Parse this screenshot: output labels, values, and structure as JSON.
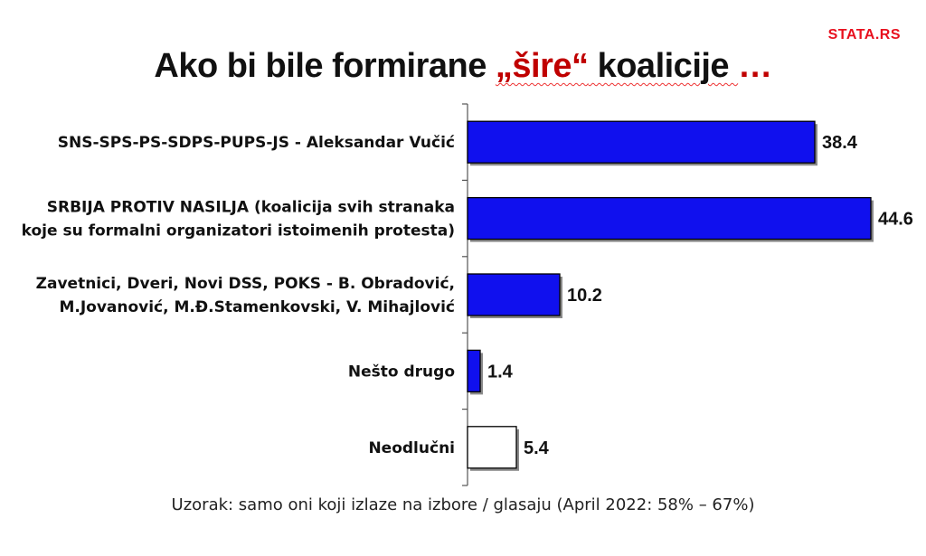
{
  "brand": "STATA.RS",
  "title": {
    "before": "Ako bi bile formirane ",
    "highlight": "„šire“",
    "after": " koalicije ",
    "ellipsis": "…"
  },
  "footnote": "Uzorak: samo oni koji izlaze na izbore / glasaju (April 2022: 58% – 67%)",
  "colors": {
    "bar": "#1010ee",
    "bar_undecided": "#ffffff",
    "accent": "#c00000",
    "brand": "#e8101e"
  },
  "chart_data": {
    "type": "bar",
    "orientation": "horizontal",
    "categories": [
      [
        "SNS-SPS-PS-SDPS-PUPS-JS - Aleksandar Vučić"
      ],
      [
        "SRBIJA PROTIV NASILJA (koalicija svih stranaka",
        "koje su formalni organizatori istoimenih protesta)"
      ],
      [
        "Zavetnici, Dveri, Novi DSS, POKS - B. Obradović,",
        "M.Jovanović, M.Đ.Stamenkovski, V. Mihajlović"
      ],
      [
        "Nešto drugo"
      ],
      [
        "Neodlučni"
      ]
    ],
    "values": [
      38.4,
      44.6,
      10.2,
      1.4,
      5.4
    ],
    "value_labels": [
      "38.4",
      "44.6",
      "10.2",
      "1.4",
      "5.4"
    ],
    "bar_fill": [
      "#1010ee",
      "#1010ee",
      "#1010ee",
      "#1010ee",
      "#ffffff"
    ],
    "xlim": [
      0,
      50
    ],
    "grid": false,
    "legend": "none"
  }
}
